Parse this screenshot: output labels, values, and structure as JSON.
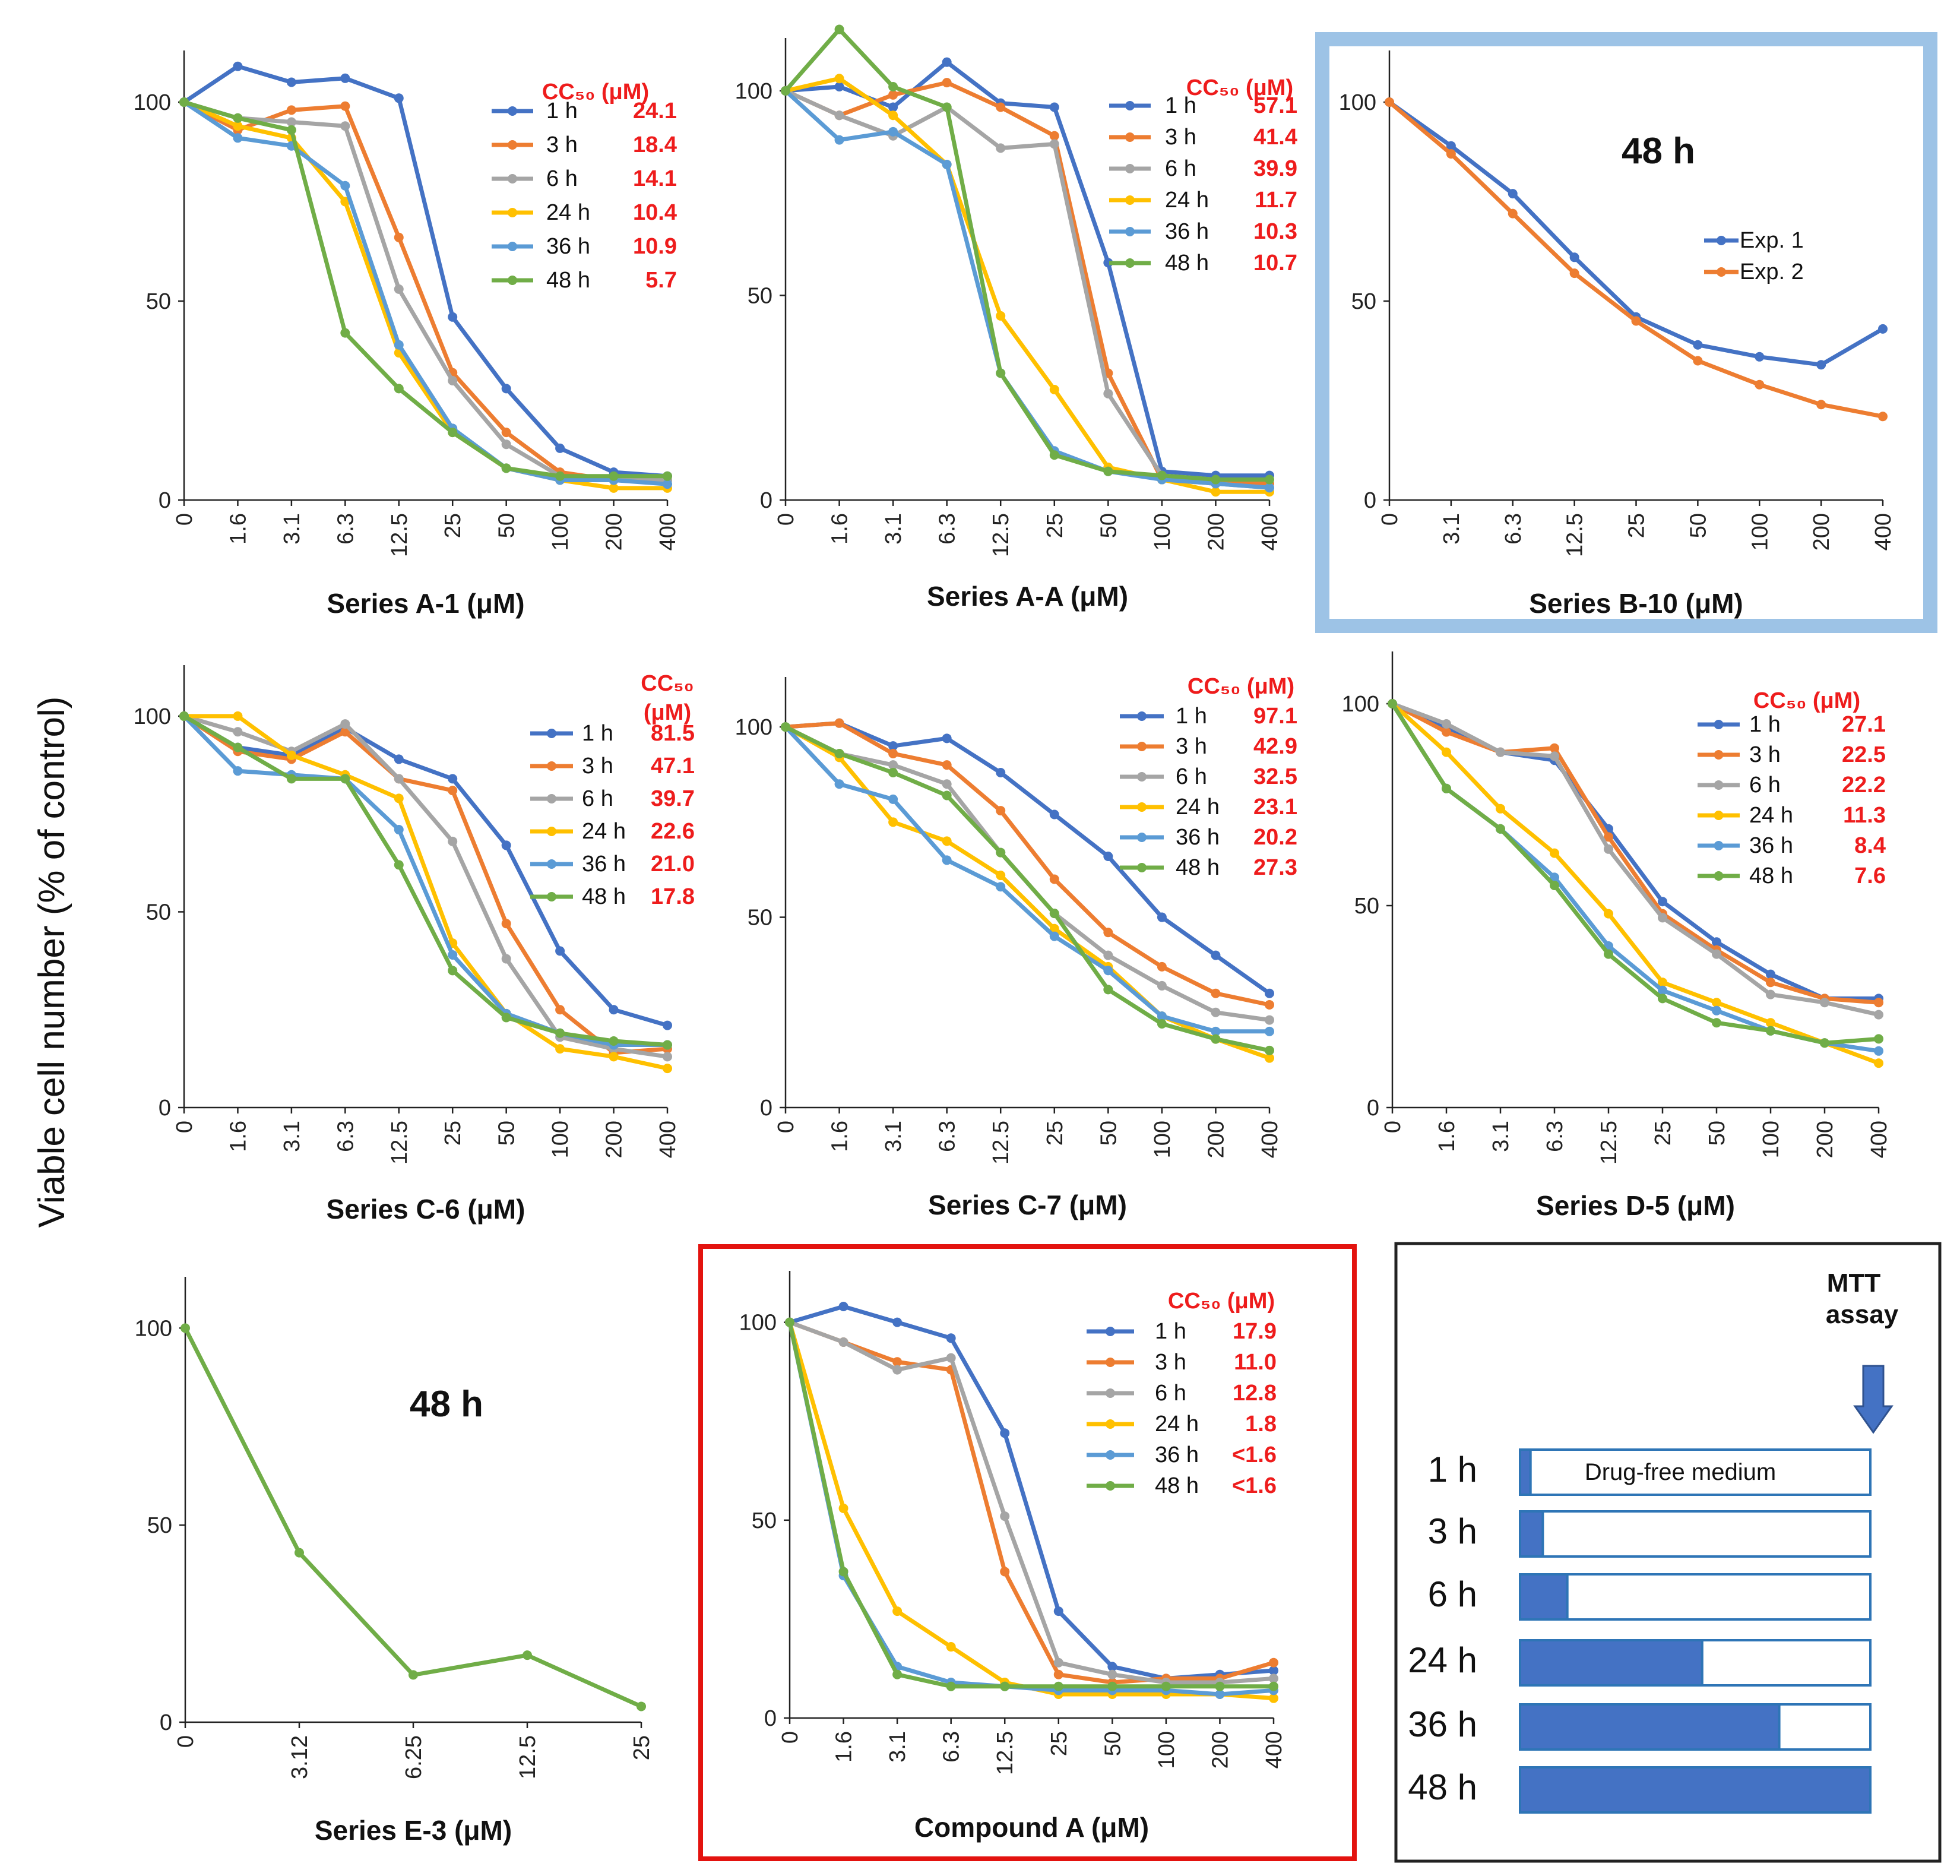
{
  "figure": {
    "ylabel": "Viable cell number (% of control)",
    "colors": {
      "1 h": "#4472c4",
      "3 h": "#ed7d31",
      "6 h": "#a5a5a5",
      "24 h": "#ffc000",
      "36 h": "#5b9bd5",
      "48 h": "#70ad47",
      "cc50_text": "#ee1c1c",
      "highlight_blue": "#9dc3e6",
      "highlight_red": "#e3130f"
    }
  },
  "schedule": {
    "mtt_label_line1": "MTT",
    "mtt_label_line2": "assay",
    "drug_free_label": "Drug-free medium",
    "rows": [
      {
        "label": "1 h",
        "fraction": 0.03
      },
      {
        "label": "3 h",
        "fraction": 0.065
      },
      {
        "label": "6 h",
        "fraction": 0.135
      },
      {
        "label": "24 h",
        "fraction": 0.52
      },
      {
        "label": "36 h",
        "fraction": 0.74
      },
      {
        "label": "48 h",
        "fraction": 1.0
      }
    ]
  },
  "chart_data": [
    {
      "id": "a1",
      "type": "line",
      "xlabel": "Series A-1 (μM)",
      "ylabel": "Viable cell number (% of control)",
      "categories": [
        "0",
        "1.6",
        "3.1",
        "6.3",
        "12.5",
        "25",
        "50",
        "100",
        "200",
        "400"
      ],
      "ylim": [
        0,
        110
      ],
      "yticks": [
        0,
        50,
        100
      ],
      "cc50_title": "CC₅₀ (μM)",
      "series": [
        {
          "name": "1 h",
          "cc50": "24.1",
          "values": [
            100,
            109,
            105,
            106,
            101,
            46,
            28,
            13,
            7,
            6
          ]
        },
        {
          "name": "3 h",
          "cc50": "18.4",
          "values": [
            100,
            93,
            98,
            99,
            66,
            32,
            17,
            7,
            5,
            5
          ]
        },
        {
          "name": "6 h",
          "cc50": "14.1",
          "values": [
            100,
            96,
            95,
            94,
            53,
            30,
            14,
            6,
            5,
            5
          ]
        },
        {
          "name": "24 h",
          "cc50": "10.4",
          "values": [
            100,
            94,
            91,
            75,
            37,
            17,
            8,
            5,
            3,
            3
          ]
        },
        {
          "name": "36 h",
          "cc50": "10.9",
          "values": [
            100,
            91,
            89,
            79,
            39,
            18,
            8,
            5,
            5,
            4
          ]
        },
        {
          "name": "48 h",
          "cc50": "5.7",
          "values": [
            100,
            96,
            93,
            42,
            28,
            17,
            8,
            6,
            6,
            6
          ]
        }
      ]
    },
    {
      "id": "aa",
      "type": "line",
      "xlabel": "Series A-A (μM)",
      "ylabel": "Viable cell number (% of control)",
      "categories": [
        "0",
        "1.6",
        "3.1",
        "6.3",
        "12.5",
        "25",
        "50",
        "100",
        "200",
        "400"
      ],
      "ylim": [
        0,
        110
      ],
      "yticks": [
        0,
        50,
        100
      ],
      "cc50_title": "CC₅₀ (μM)",
      "series": [
        {
          "name": "1 h",
          "cc50": "57.1",
          "values": [
            100,
            101,
            96,
            107,
            97,
            96,
            58,
            7,
            6,
            6
          ]
        },
        {
          "name": "3 h",
          "cc50": "41.4",
          "values": [
            100,
            94,
            99,
            102,
            96,
            89,
            31,
            5,
            4,
            4
          ]
        },
        {
          "name": "6 h",
          "cc50": "39.9",
          "values": [
            100,
            94,
            89,
            96,
            86,
            87,
            26,
            6,
            4,
            3
          ]
        },
        {
          "name": "24 h",
          "cc50": "11.7",
          "values": [
            100,
            103,
            94,
            82,
            45,
            27,
            8,
            5,
            2,
            2
          ]
        },
        {
          "name": "36 h",
          "cc50": "10.3",
          "values": [
            100,
            88,
            90,
            82,
            31,
            12,
            7,
            5,
            4,
            3
          ]
        },
        {
          "name": "48 h",
          "cc50": "10.7",
          "values": [
            100,
            115,
            101,
            96,
            31,
            11,
            7,
            6,
            5,
            5
          ]
        }
      ]
    },
    {
      "id": "b10",
      "type": "line",
      "xlabel": "Series B-10 (μM)",
      "ylabel": "Viable cell number (% of control)",
      "categories": [
        "0",
        "3.1",
        "6.3",
        "12.5",
        "25",
        "50",
        "100",
        "200",
        "400"
      ],
      "ylim": [
        0,
        110
      ],
      "yticks": [
        0,
        50,
        100
      ],
      "annotation": "48 h",
      "series": [
        {
          "name": "Exp. 1",
          "values": [
            100,
            89,
            77,
            61,
            46,
            39,
            36,
            34,
            43
          ]
        },
        {
          "name": "Exp. 2",
          "values": [
            100,
            87,
            72,
            57,
            45,
            35,
            29,
            24,
            21
          ]
        }
      ]
    },
    {
      "id": "c6",
      "type": "line",
      "xlabel": "Series C-6 (μM)",
      "ylabel": "Viable cell number (% of control)",
      "categories": [
        "0",
        "1.6",
        "3.1",
        "6.3",
        "12.5",
        "25",
        "50",
        "100",
        "200",
        "400"
      ],
      "ylim": [
        0,
        110
      ],
      "yticks": [
        0,
        50,
        100
      ],
      "cc50_title_line1": "CC₅₀",
      "cc50_title_line2": "(μM)",
      "series": [
        {
          "name": "1 h",
          "cc50": "81.5",
          "values": [
            100,
            92,
            90,
            97,
            89,
            84,
            67,
            40,
            25,
            21
          ]
        },
        {
          "name": "3 h",
          "cc50": "47.1",
          "values": [
            100,
            91,
            89,
            96,
            84,
            81,
            47,
            25,
            14,
            15
          ]
        },
        {
          "name": "6 h",
          "cc50": "39.7",
          "values": [
            100,
            96,
            91,
            98,
            84,
            68,
            38,
            18,
            15,
            13
          ]
        },
        {
          "name": "24 h",
          "cc50": "22.6",
          "values": [
            100,
            100,
            90,
            85,
            79,
            42,
            24,
            15,
            13,
            10
          ]
        },
        {
          "name": "36 h",
          "cc50": "21.0",
          "values": [
            100,
            86,
            85,
            84,
            71,
            39,
            24,
            19,
            16,
            16
          ]
        },
        {
          "name": "48 h",
          "cc50": "17.8",
          "values": [
            100,
            92,
            84,
            84,
            62,
            35,
            23,
            19,
            17,
            16
          ]
        }
      ]
    },
    {
      "id": "c7",
      "type": "line",
      "xlabel": "Series C-7 (μM)",
      "ylabel": "Viable cell number (% of control)",
      "categories": [
        "0",
        "1.6",
        "3.1",
        "6.3",
        "12.5",
        "25",
        "50",
        "100",
        "200",
        "400"
      ],
      "ylim": [
        0,
        110
      ],
      "yticks": [
        0,
        50,
        100
      ],
      "cc50_title": "CC₅₀ (μM)",
      "series": [
        {
          "name": "1 h",
          "cc50": "97.1",
          "values": [
            100,
            101,
            95,
            97,
            88,
            77,
            66,
            50,
            40,
            30
          ]
        },
        {
          "name": "3 h",
          "cc50": "42.9",
          "values": [
            100,
            101,
            93,
            90,
            78,
            60,
            46,
            37,
            30,
            27
          ]
        },
        {
          "name": "6 h",
          "cc50": "32.5",
          "values": [
            100,
            93,
            90,
            85,
            67,
            51,
            40,
            32,
            25,
            23
          ]
        },
        {
          "name": "24 h",
          "cc50": "23.1",
          "values": [
            100,
            92,
            75,
            70,
            61,
            47,
            37,
            24,
            18,
            13
          ]
        },
        {
          "name": "36 h",
          "cc50": "20.2",
          "values": [
            100,
            85,
            81,
            65,
            58,
            45,
            36,
            24,
            20,
            20
          ]
        },
        {
          "name": "48 h",
          "cc50": "27.3",
          "values": [
            100,
            93,
            88,
            82,
            67,
            51,
            31,
            22,
            18,
            15
          ]
        }
      ]
    },
    {
      "id": "d5",
      "type": "line",
      "xlabel": "Series D-5 (μM)",
      "ylabel": "Viable cell number (% of control)",
      "categories": [
        "0",
        "1.6",
        "3.1",
        "6.3",
        "12.5",
        "25",
        "50",
        "100",
        "200",
        "400"
      ],
      "ylim": [
        0,
        110
      ],
      "yticks": [
        0,
        50,
        100
      ],
      "cc50_title": "CC₅₀ (μM)",
      "series": [
        {
          "name": "1 h",
          "cc50": "27.1",
          "values": [
            100,
            94,
            88,
            86,
            69,
            51,
            41,
            33,
            27,
            27
          ]
        },
        {
          "name": "3 h",
          "cc50": "22.5",
          "values": [
            100,
            93,
            88,
            89,
            67,
            48,
            39,
            31,
            27,
            26
          ]
        },
        {
          "name": "6 h",
          "cc50": "22.2",
          "values": [
            100,
            95,
            88,
            87,
            64,
            47,
            38,
            28,
            26,
            23
          ]
        },
        {
          "name": "24 h",
          "cc50": "11.3",
          "values": [
            100,
            88,
            74,
            63,
            48,
            31,
            26,
            21,
            16,
            11
          ]
        },
        {
          "name": "36 h",
          "cc50": "8.4",
          "values": [
            100,
            79,
            69,
            57,
            40,
            29,
            24,
            19,
            16,
            14
          ]
        },
        {
          "name": "48 h",
          "cc50": "7.6",
          "values": [
            100,
            79,
            69,
            55,
            38,
            27,
            21,
            19,
            16,
            17
          ]
        }
      ]
    },
    {
      "id": "e3",
      "type": "line",
      "xlabel": "Series E-3 (μM)",
      "ylabel": "Viable cell number (% of control)",
      "categories": [
        "0",
        "3.12",
        "6.25",
        "12.5",
        "25"
      ],
      "ylim": [
        0,
        110
      ],
      "yticks": [
        0,
        50,
        100
      ],
      "annotation": "48 h",
      "series": [
        {
          "name": "48 h",
          "values": [
            100,
            43,
            12,
            17,
            4
          ]
        }
      ]
    },
    {
      "id": "compa",
      "type": "line",
      "xlabel": "Compound A (μM)",
      "ylabel": "Viable cell number (% of control)",
      "categories": [
        "0",
        "1.6",
        "3.1",
        "6.3",
        "12.5",
        "25",
        "50",
        "100",
        "200",
        "400"
      ],
      "ylim": [
        0,
        110
      ],
      "yticks": [
        0,
        50,
        100
      ],
      "cc50_title": "CC₅₀ (μM)",
      "series": [
        {
          "name": "1 h",
          "cc50": "17.9",
          "values": [
            100,
            104,
            100,
            96,
            72,
            27,
            13,
            10,
            11,
            12
          ]
        },
        {
          "name": "3 h",
          "cc50": "11.0",
          "values": [
            100,
            95,
            90,
            88,
            37,
            11,
            9,
            10,
            10,
            14
          ]
        },
        {
          "name": "6 h",
          "cc50": "12.8",
          "values": [
            100,
            95,
            88,
            91,
            51,
            14,
            11,
            9,
            9,
            10
          ]
        },
        {
          "name": "24 h",
          "cc50": "1.8",
          "values": [
            100,
            53,
            27,
            18,
            9,
            6,
            6,
            6,
            6,
            5
          ]
        },
        {
          "name": "36 h",
          "cc50": "<1.6",
          "values": [
            100,
            36,
            13,
            9,
            8,
            7,
            7,
            7,
            6,
            7
          ]
        },
        {
          "name": "48 h",
          "cc50": "<1.6",
          "values": [
            100,
            37,
            11,
            8,
            8,
            8,
            8,
            8,
            8,
            8
          ]
        }
      ]
    }
  ]
}
